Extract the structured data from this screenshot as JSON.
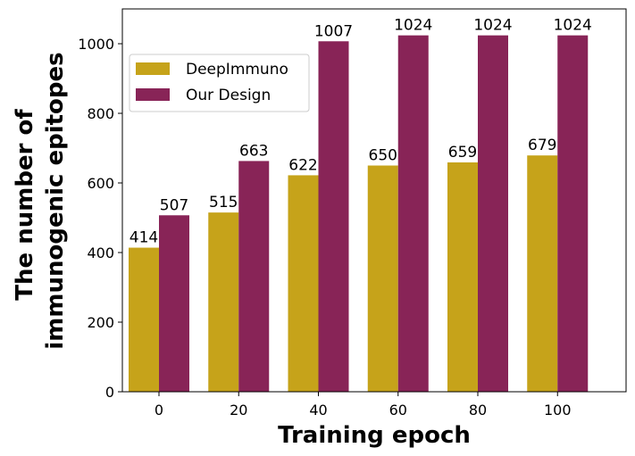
{
  "chart_data": {
    "type": "bar",
    "categories": [
      "0",
      "20",
      "40",
      "60",
      "80",
      "100"
    ],
    "series": [
      {
        "name": "DeepImmuno",
        "values": [
          414,
          515,
          622,
          650,
          659,
          679
        ],
        "color": "#c6a31a"
      },
      {
        "name": "Our Design",
        "values": [
          507,
          663,
          1007,
          1024,
          1024,
          1024
        ],
        "color": "#882457"
      }
    ],
    "xlabel": "Training epoch",
    "ylabel_lines": [
      "The number of",
      "immunogenic epitopes"
    ],
    "ylim": [
      0,
      1100
    ],
    "yticks": [
      "0",
      "200",
      "400",
      "600",
      "800",
      "1000"
    ],
    "legend_position": "upper-left",
    "grid": false
  }
}
